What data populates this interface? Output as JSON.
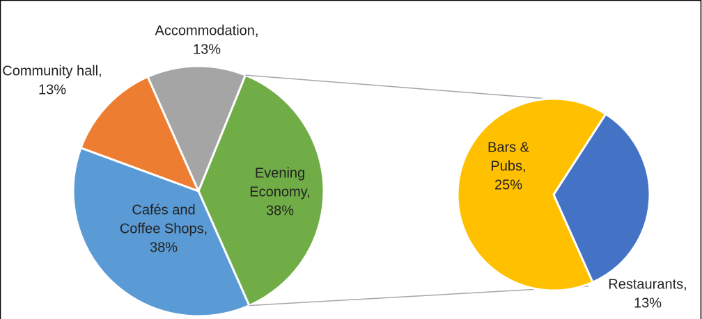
{
  "chart_data": {
    "type": "pie-of-pie",
    "values": [
      38,
      38,
      13,
      13
    ],
    "value_labels": [
      [
        "Evening",
        "Economy,",
        "38%"
      ],
      [
        "Cafés and",
        "Coffee Shops,",
        "38%"
      ],
      [
        "Community hall,",
        "13%"
      ],
      [
        "Accommodation,",
        "13%"
      ]
    ],
    "colors": [
      "#70ad47",
      "#5b9bd5",
      "#ed7d31",
      "#a5a5a5"
    ],
    "secondary": {
      "values": [
        25,
        13
      ],
      "value_labels": [
        [
          "Bars &",
          "Pubs,",
          "25%"
        ],
        [
          "Restaurants,",
          "13%"
        ]
      ],
      "colors": [
        "#ffc000",
        "#4472c4"
      ]
    }
  }
}
